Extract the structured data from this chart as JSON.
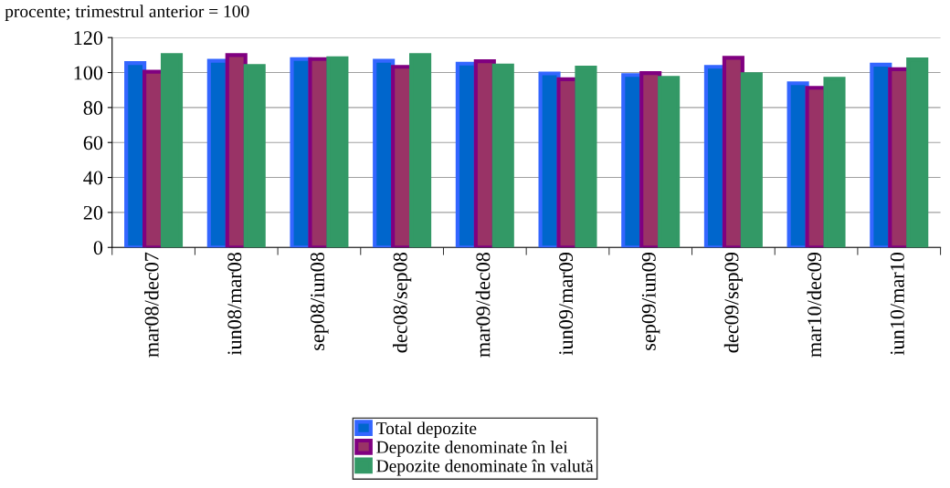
{
  "chart_data": {
    "type": "bar",
    "subtitle": "procente; trimestrul anterior = 100",
    "categories": [
      "mar08/dec07",
      "iun08/mar08",
      "sep08/iun08",
      "dec08/sep08",
      "mar09/dec08",
      "iun09/mar09",
      "sep09/iun09",
      "dec09/sep09",
      "mar10/dec09",
      "iun10/mar10"
    ],
    "series": [
      {
        "name": "Total depozite",
        "color": "#0066cc",
        "values": [
          105.4,
          106.7,
          107.7,
          106.7,
          105.1,
          99.5,
          98.6,
          103.3,
          93.9,
          104.5
        ]
      },
      {
        "name": "Depozite denominate în lei",
        "color": "#993366",
        "values": [
          100.5,
          110,
          107.7,
          103.3,
          106.5,
          96.2,
          99.7,
          108.4,
          91.3,
          101.9
        ]
      },
      {
        "name": "Depozite denominate în valută",
        "color": "#339966",
        "values": [
          110,
          103.7,
          108.2,
          110,
          104,
          102.8,
          97,
          99,
          96.5,
          107.5
        ]
      }
    ],
    "ylim": [
      0,
      120
    ],
    "yticks": [
      0,
      20,
      40,
      60,
      80,
      100,
      120
    ],
    "grid": "y",
    "legend": "bottom"
  }
}
